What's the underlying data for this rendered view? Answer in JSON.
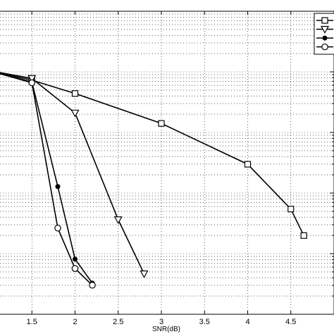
{
  "chart_data": {
    "type": "line",
    "title": "",
    "xlabel": "SNR(dB)",
    "ylabel": "",
    "xlim": [
      1.0,
      5.0
    ],
    "ylim_log10": [
      -5.0,
      0.0
    ],
    "y_scale": "log",
    "grid": true,
    "legend_position": "top-right",
    "x_ticks": [
      {
        "value": 1.5,
        "label": "1.5"
      },
      {
        "value": 2.0,
        "label": "2"
      },
      {
        "value": 2.5,
        "label": "2.5"
      },
      {
        "value": 3.0,
        "label": "3"
      },
      {
        "value": 3.5,
        "label": "3.5"
      },
      {
        "value": 4.0,
        "label": "4"
      },
      {
        "value": 4.5,
        "label": "4.5"
      }
    ],
    "series": [
      {
        "marker": "square",
        "x": [
          1.0,
          1.5,
          2.0,
          3.0,
          4.0,
          4.5,
          4.65
        ],
        "y": [
          0.105,
          0.073,
          0.044,
          0.0141,
          0.00299,
          0.000545,
          0.000199
        ]
      },
      {
        "marker": "triangle-down",
        "x": [
          1.0,
          1.5,
          2.0,
          2.5,
          2.8
        ],
        "y": [
          0.105,
          0.078,
          0.021,
          0.000364,
          4.66e-05
        ]
      },
      {
        "marker": "star",
        "x": [
          1.0,
          1.5,
          1.8,
          2.0,
          2.2
        ],
        "y": [
          0.105,
          0.068,
          0.00128,
          8.13e-05,
          3.27e-05
        ]
      },
      {
        "marker": "circle",
        "x": [
          1.0,
          1.5,
          1.8,
          2.0,
          2.2
        ],
        "y": [
          0.105,
          0.066,
          0.000264,
          5.68e-05,
          3.02e-05
        ]
      }
    ]
  }
}
